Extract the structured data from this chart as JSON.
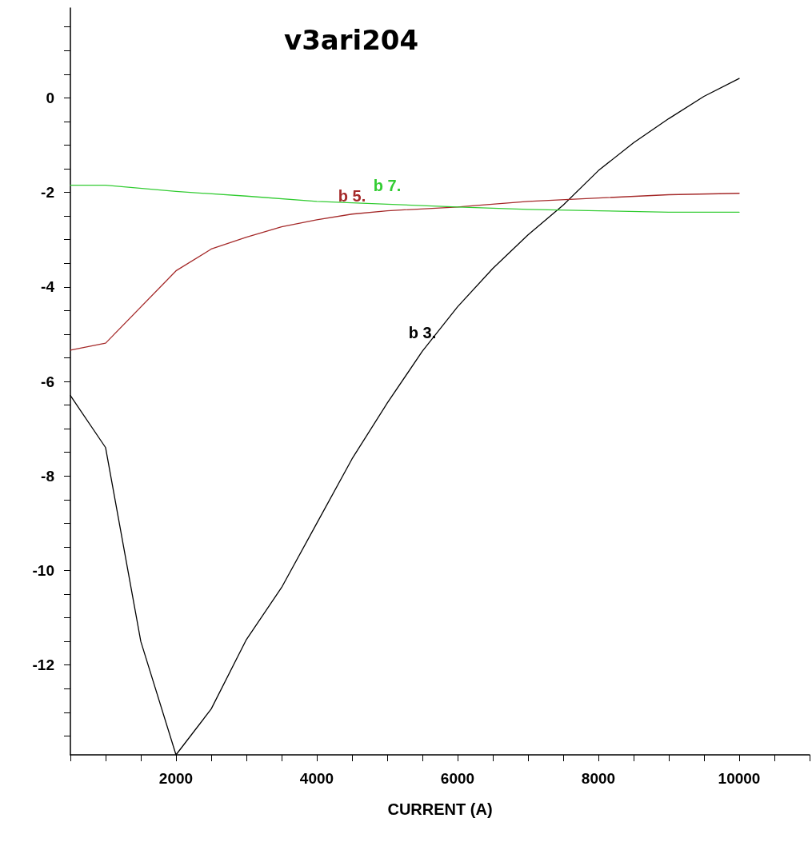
{
  "chart_data": {
    "type": "line",
    "title": "v3ari204",
    "xlabel": "CURRENT (A)",
    "xlim": [
      500,
      11000
    ],
    "ylim": [
      -13.9,
      1.9
    ],
    "xticks": [
      {
        "value": 500,
        "label": null
      },
      {
        "value": 1000,
        "label": null
      },
      {
        "value": 1500,
        "label": null
      },
      2000,
      {
        "value": 2500,
        "label": null
      },
      {
        "value": 3000,
        "label": null
      },
      {
        "value": 3500,
        "label": null
      },
      4000,
      {
        "value": 4500,
        "label": null
      },
      {
        "value": 5000,
        "label": null
      },
      {
        "value": 5500,
        "label": null
      },
      6000,
      {
        "value": 6500,
        "label": null
      },
      {
        "value": 7000,
        "label": null
      },
      {
        "value": 7500,
        "label": null
      },
      8000,
      {
        "value": 8500,
        "label": null
      },
      {
        "value": 9000,
        "label": null
      },
      {
        "value": 9500,
        "label": null
      },
      10000,
      {
        "value": 10500,
        "label": null
      },
      {
        "value": 11000,
        "label": null
      }
    ],
    "yticks": [
      {
        "value": -13.5,
        "label": null
      },
      {
        "value": -13,
        "label": null
      },
      {
        "value": -12.5,
        "label": null
      },
      -12,
      {
        "value": -11.5,
        "label": null
      },
      {
        "value": -11,
        "label": null
      },
      {
        "value": -10.5,
        "label": null
      },
      -10,
      {
        "value": -9.5,
        "label": null
      },
      {
        "value": -9,
        "label": null
      },
      {
        "value": -8.5,
        "label": null
      },
      -8,
      {
        "value": -7.5,
        "label": null
      },
      {
        "value": -7,
        "label": null
      },
      {
        "value": -6.5,
        "label": null
      },
      -6,
      {
        "value": -5.5,
        "label": null
      },
      {
        "value": -5,
        "label": null
      },
      {
        "value": -4.5,
        "label": null
      },
      -4,
      {
        "value": -3.5,
        "label": null
      },
      {
        "value": -3,
        "label": null
      },
      {
        "value": -2.5,
        "label": null
      },
      -2,
      {
        "value": -1.5,
        "label": null
      },
      {
        "value": -1,
        "label": null
      },
      {
        "value": -0.5,
        "label": null
      },
      0,
      {
        "value": 0.5,
        "label": null
      },
      {
        "value": 1,
        "label": null
      },
      {
        "value": 1.5,
        "label": null
      }
    ],
    "grid": false,
    "legend": false,
    "marker": "none",
    "line_style": "solid",
    "series": [
      {
        "name": "b 3.",
        "color": "#000000",
        "x": [
          500,
          1000,
          1500,
          2000,
          2500,
          3000,
          3500,
          4000,
          4500,
          5000,
          5500,
          6000,
          6500,
          7000,
          7500,
          8000,
          8500,
          9000,
          9500,
          10000
        ],
        "values": [
          -6.3,
          -7.4,
          -11.5,
          -13.9,
          -12.93,
          -11.46,
          -10.36,
          -9.0,
          -7.64,
          -6.46,
          -5.36,
          -4.42,
          -3.61,
          -2.9,
          -2.27,
          -1.54,
          -0.95,
          -0.44,
          0.03,
          0.41
        ]
      },
      {
        "name": "b 5.",
        "color": "#a52a2a",
        "x": [
          500,
          1000,
          2000,
          2500,
          3000,
          3500,
          4000,
          4500,
          5000,
          6000,
          7000,
          8000,
          9000,
          10000
        ],
        "values": [
          -5.34,
          -5.19,
          -3.66,
          -3.2,
          -2.95,
          -2.73,
          -2.58,
          -2.46,
          -2.39,
          -2.31,
          -2.19,
          -2.12,
          -2.05,
          -2.02
        ]
      },
      {
        "name": "b 7.",
        "color": "#33cc33",
        "x": [
          500,
          1000,
          2000,
          3000,
          4000,
          5000,
          6000,
          7000,
          8000,
          9000,
          10000
        ],
        "values": [
          -1.85,
          -1.85,
          -1.98,
          -2.08,
          -2.19,
          -2.25,
          -2.31,
          -2.36,
          -2.39,
          -2.42,
          -2.42
        ]
      }
    ]
  }
}
